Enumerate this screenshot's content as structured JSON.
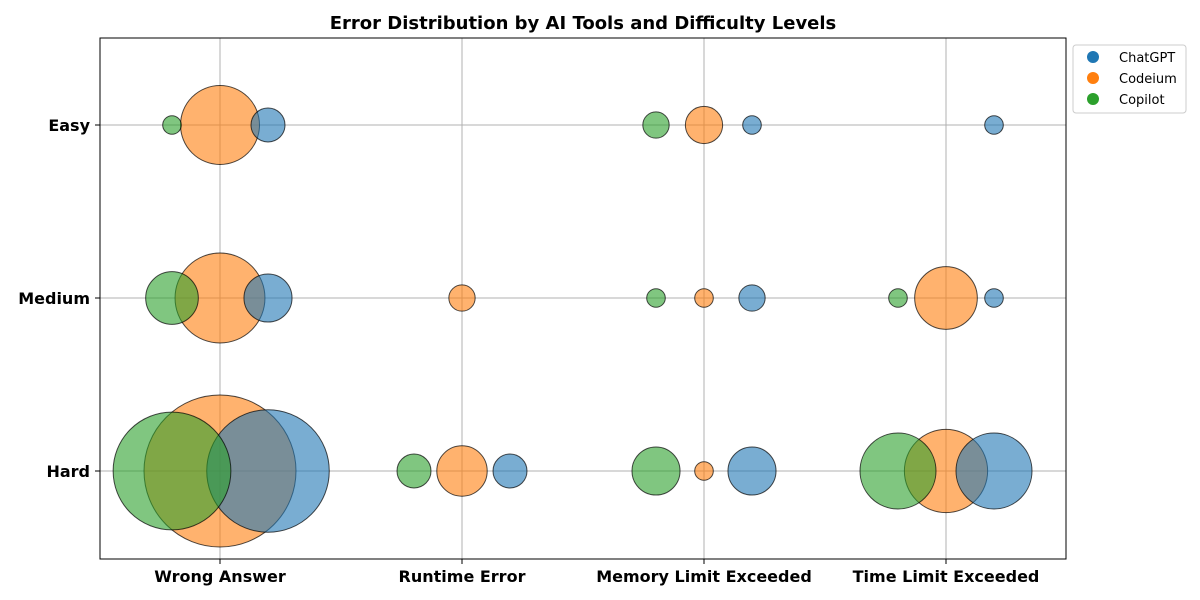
{
  "chart_data": {
    "type": "scatter",
    "title": "Error Distribution by AI Tools and Difficulty Levels",
    "xlabel": "",
    "ylabel": "",
    "categories": [
      "Wrong Answer",
      "Runtime Error",
      "Memory Limit Exceeded",
      "Time Limit Exceeded"
    ],
    "difficulty_levels": [
      "Easy",
      "Medium",
      "Hard"
    ],
    "grid": true,
    "legend_position": "outside top-right",
    "series": [
      {
        "name": "ChatGPT",
        "color": "#1f77b4",
        "points": [
          {
            "category": "Wrong Answer",
            "difficulty": "Easy",
            "value": 5
          },
          {
            "category": "Wrong Answer",
            "difficulty": "Medium",
            "value": 10
          },
          {
            "category": "Wrong Answer",
            "difficulty": "Hard",
            "value": 65
          },
          {
            "category": "Runtime Error",
            "difficulty": "Hard",
            "value": 5
          },
          {
            "category": "Memory Limit Exceeded",
            "difficulty": "Easy",
            "value": 1.5
          },
          {
            "category": "Memory Limit Exceeded",
            "difficulty": "Medium",
            "value": 3
          },
          {
            "category": "Memory Limit Exceeded",
            "difficulty": "Hard",
            "value": 10
          },
          {
            "category": "Time Limit Exceeded",
            "difficulty": "Easy",
            "value": 1.5
          },
          {
            "category": "Time Limit Exceeded",
            "difficulty": "Medium",
            "value": 1.5
          },
          {
            "category": "Time Limit Exceeded",
            "difficulty": "Hard",
            "value": 25
          }
        ]
      },
      {
        "name": "Codeium",
        "color": "#ff7f0e",
        "points": [
          {
            "category": "Wrong Answer",
            "difficulty": "Easy",
            "value": 27
          },
          {
            "category": "Wrong Answer",
            "difficulty": "Medium",
            "value": 35
          },
          {
            "category": "Wrong Answer",
            "difficulty": "Hard",
            "value": 100
          },
          {
            "category": "Runtime Error",
            "difficulty": "Medium",
            "value": 3
          },
          {
            "category": "Runtime Error",
            "difficulty": "Hard",
            "value": 11
          },
          {
            "category": "Memory Limit Exceeded",
            "difficulty": "Easy",
            "value": 6
          },
          {
            "category": "Memory Limit Exceeded",
            "difficulty": "Medium",
            "value": 1.5
          },
          {
            "category": "Memory Limit Exceeded",
            "difficulty": "Hard",
            "value": 1.5
          },
          {
            "category": "Time Limit Exceeded",
            "difficulty": "Medium",
            "value": 17
          },
          {
            "category": "Time Limit Exceeded",
            "difficulty": "Hard",
            "value": 30
          }
        ]
      },
      {
        "name": "Copilot",
        "color": "#2ca02c",
        "points": [
          {
            "category": "Wrong Answer",
            "difficulty": "Easy",
            "value": 1.5
          },
          {
            "category": "Wrong Answer",
            "difficulty": "Medium",
            "value": 12
          },
          {
            "category": "Wrong Answer",
            "difficulty": "Hard",
            "value": 60
          },
          {
            "category": "Runtime Error",
            "difficulty": "Hard",
            "value": 5
          },
          {
            "category": "Memory Limit Exceeded",
            "difficulty": "Easy",
            "value": 3
          },
          {
            "category": "Memory Limit Exceeded",
            "difficulty": "Medium",
            "value": 1.5
          },
          {
            "category": "Memory Limit Exceeded",
            "difficulty": "Hard",
            "value": 10
          },
          {
            "category": "Time Limit Exceeded",
            "difficulty": "Medium",
            "value": 1.5
          },
          {
            "category": "Time Limit Exceeded",
            "difficulty": "Hard",
            "value": 25
          }
        ]
      }
    ]
  }
}
